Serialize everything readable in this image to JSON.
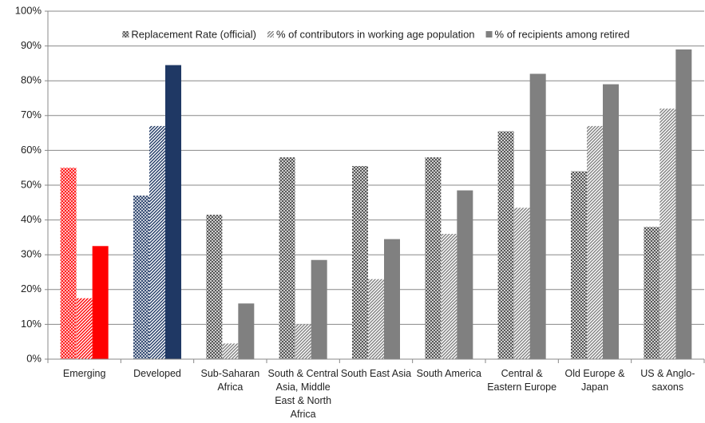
{
  "chart_data": {
    "type": "bar",
    "categories": [
      "Emerging",
      "Developed",
      "Sub-Saharan Africa",
      "South & Central Asia, Middle East & North Africa",
      "South East Asia",
      "South America",
      "Central & Eastern Europe",
      "Old Europe & Japan",
      "US & Anglo-saxons"
    ],
    "series": [
      {
        "name": "Replacement Rate (official)",
        "color": "#404040",
        "pattern": "crosshatch",
        "colors": [
          "#ff0000",
          "#1f3864",
          "#404040",
          "#404040",
          "#404040",
          "#404040",
          "#404040",
          "#404040",
          "#404040"
        ],
        "values": [
          55,
          47,
          41.5,
          58,
          55.5,
          58,
          65.5,
          54,
          38
        ]
      },
      {
        "name": "% of contributors in working age population",
        "color": "#808080",
        "pattern": "diagonal",
        "colors": [
          "#ff0000",
          "#1f3864",
          "#808080",
          "#808080",
          "#808080",
          "#808080",
          "#808080",
          "#808080",
          "#808080"
        ],
        "values": [
          17.5,
          67,
          4.5,
          10,
          23,
          36,
          43.5,
          67,
          72
        ]
      },
      {
        "name": "% of recipients among retired",
        "color": "#808080",
        "pattern": "solid",
        "colors": [
          "#ff0000",
          "#1f3864",
          "#808080",
          "#808080",
          "#808080",
          "#808080",
          "#808080",
          "#808080",
          "#808080"
        ],
        "values": [
          32.5,
          84.5,
          16,
          28.5,
          34.5,
          48.5,
          82,
          79,
          89
        ]
      }
    ],
    "ylim": [
      0,
      100
    ],
    "yticks": [
      {
        "value": 0,
        "label": "0%"
      },
      {
        "value": 10,
        "label": "10%"
      },
      {
        "value": 20,
        "label": "20%"
      },
      {
        "value": 30,
        "label": "30%"
      },
      {
        "value": 40,
        "label": "40%"
      },
      {
        "value": 50,
        "label": "50%"
      },
      {
        "value": 60,
        "label": "60%"
      },
      {
        "value": 70,
        "label": "70%"
      },
      {
        "value": 80,
        "label": "80%"
      },
      {
        "value": 90,
        "label": "90%"
      },
      {
        "value": 100,
        "label": "100%"
      }
    ],
    "grid": true,
    "legend": "top"
  }
}
